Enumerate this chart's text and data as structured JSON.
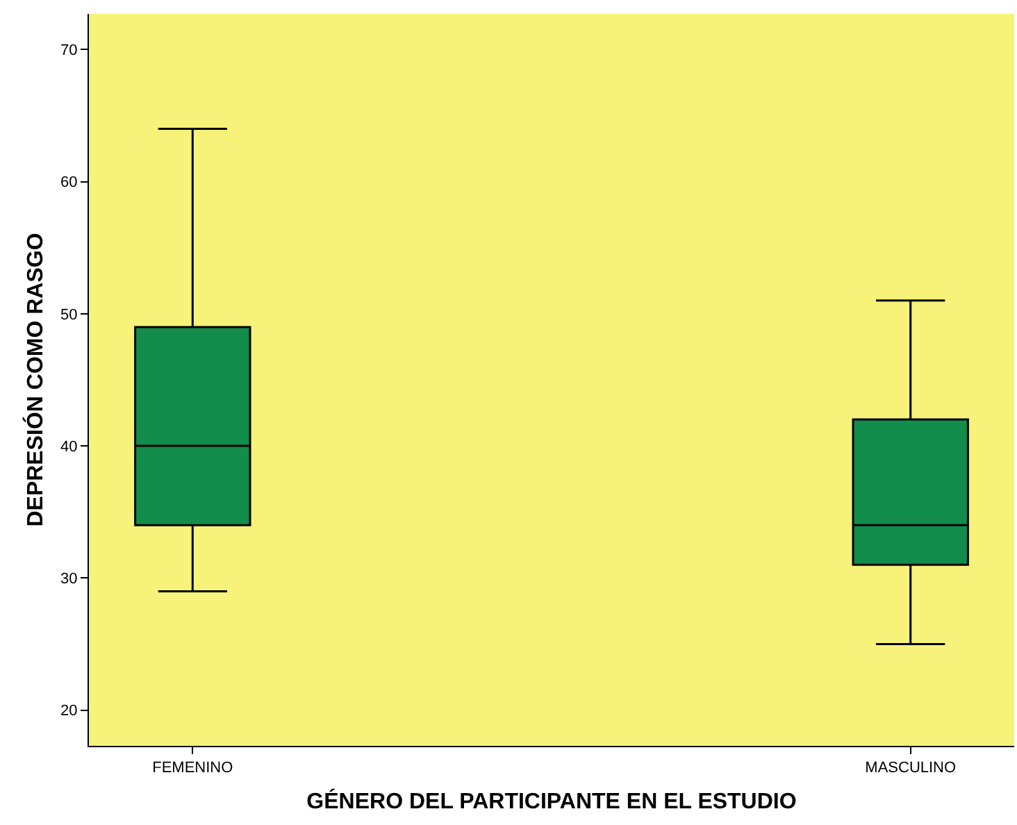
{
  "chart_data": {
    "type": "box",
    "xlabel": "GÉNERO DEL PARTICIPANTE EN EL ESTUDIO",
    "ylabel": "DEPRESIÓN COMO RASGO",
    "categories": [
      "FEMENINO",
      "MASCULINO"
    ],
    "color": "#138d4b",
    "boxes": [
      {
        "low": 29,
        "q1": 34,
        "median": 40,
        "q3": 49,
        "high": 64
      },
      {
        "low": 25,
        "q1": 31,
        "median": 34,
        "q3": 42,
        "high": 51
      }
    ],
    "ylim": [
      17.3,
      72.7
    ],
    "yticks": [
      20,
      30,
      40,
      50,
      60,
      70
    ],
    "grid": false
  }
}
